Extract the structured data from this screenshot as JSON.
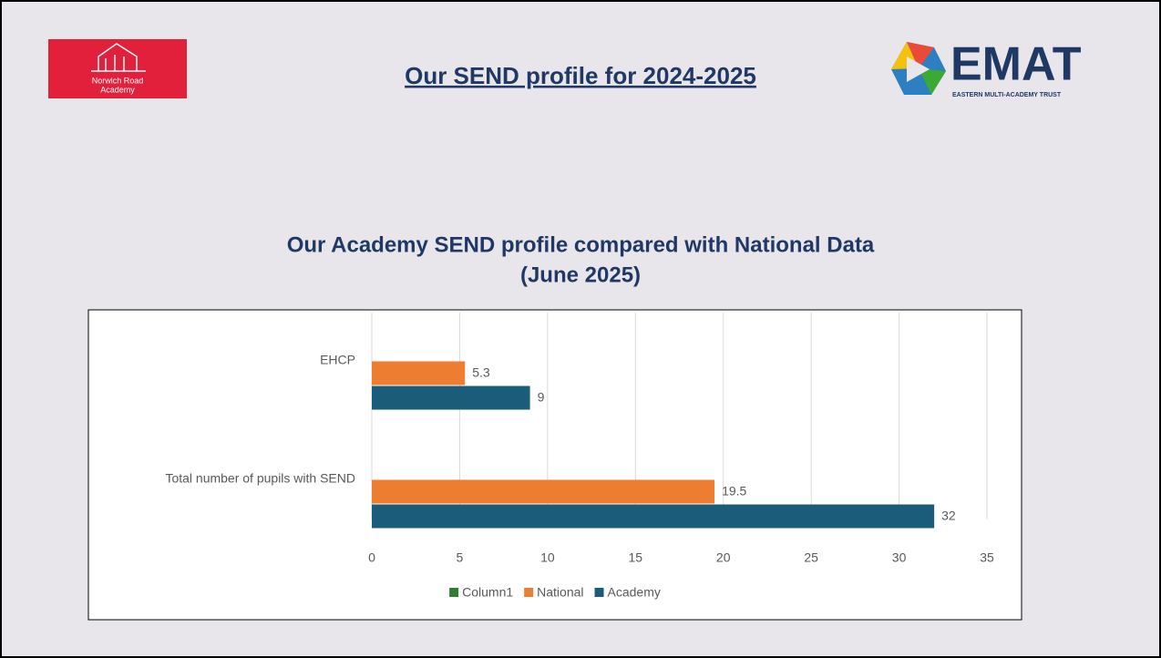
{
  "header": {
    "logo": [
      "Norwich Road",
      "Academy"
    ],
    "title": "Our SEND profile for 2024-2025",
    "emat": "EMAT",
    "emat_subtitle": "EASTERN MULTI-ACADEMY TRUST"
  },
  "chart_data": {
    "type": "bar",
    "orientation": "horizontal",
    "title": "Our Academy SEND profile compared with National Data",
    "subtitle": "(June 2025)",
    "categories": [
      "EHCP",
      "Total number of pupils with SEND"
    ],
    "series": [
      {
        "name": "Column1",
        "color": "#2e7d32",
        "values": [
          null,
          null
        ]
      },
      {
        "name": "National",
        "color": "#ed7d31",
        "values": [
          5.3,
          19.5
        ]
      },
      {
        "name": "Academy",
        "color": "#1b5c7b",
        "values": [
          9,
          32
        ]
      }
    ],
    "xlim": [
      0,
      35
    ],
    "xticks": [
      0,
      5,
      10,
      15,
      20,
      25,
      30,
      35
    ],
    "grid": true,
    "legend": "bottom"
  }
}
